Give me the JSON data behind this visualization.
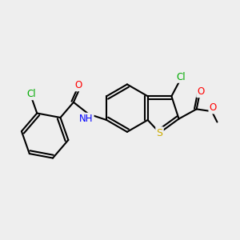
{
  "background_color": "#eeeeee",
  "bond_color": "black",
  "bond_width": 1.5,
  "atom_colors": {
    "S": "#ccaa00",
    "N": "blue",
    "O": "red",
    "Cl": "#00aa00"
  },
  "xlim": [
    0,
    10
  ],
  "ylim": [
    0,
    10
  ]
}
